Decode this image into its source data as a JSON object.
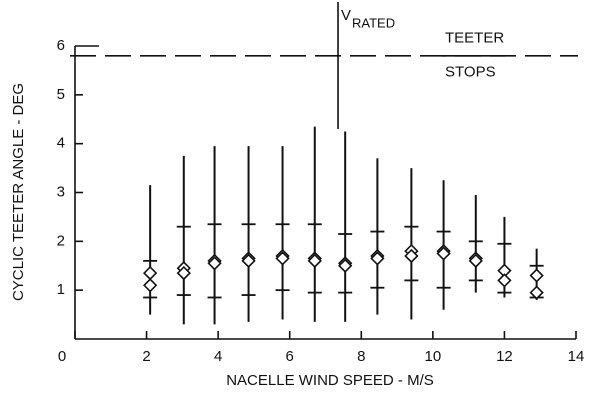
{
  "chart_data": {
    "type": "scatter",
    "x_label": "NACELLE WIND SPEED - M/S",
    "y_label": "CYCLIC TEETER ANGLE - DEG",
    "xlim": [
      0,
      14
    ],
    "ylim": [
      0,
      6
    ],
    "xticks": [
      0,
      2,
      4,
      6,
      8,
      10,
      12,
      14
    ],
    "yticks": [
      1,
      2,
      3,
      4,
      5,
      6
    ],
    "color": "#111111",
    "points": {
      "x": [
        2.1,
        3.04,
        3.9,
        4.85,
        5.8,
        6.7,
        7.55,
        8.45,
        9.4,
        10.3,
        11.2,
        12.0,
        12.9
      ],
      "max": [
        3.15,
        3.75,
        3.95,
        3.95,
        3.95,
        4.35,
        4.25,
        3.7,
        3.5,
        3.25,
        2.95,
        2.5,
        1.85
      ],
      "min": [
        0.5,
        0.3,
        0.3,
        0.35,
        0.4,
        0.35,
        0.35,
        0.5,
        0.4,
        0.6,
        0.95,
        0.85,
        0.8
      ],
      "upper": [
        1.6,
        2.3,
        2.35,
        2.35,
        2.35,
        2.35,
        2.15,
        2.2,
        2.3,
        2.2,
        2.0,
        1.95,
        1.5
      ],
      "lower": [
        0.85,
        0.9,
        0.85,
        0.9,
        1.0,
        0.95,
        0.95,
        1.05,
        1.2,
        1.05,
        1.2,
        0.95,
        0.85
      ],
      "value1": [
        1.35,
        1.45,
        1.6,
        1.65,
        1.7,
        1.65,
        1.55,
        1.7,
        1.8,
        1.8,
        1.65,
        1.4,
        1.3
      ],
      "value2": [
        1.1,
        1.35,
        1.55,
        1.6,
        1.65,
        1.6,
        1.5,
        1.65,
        1.7,
        1.75,
        1.6,
        1.2,
        0.95
      ]
    },
    "teeter_stops": {
      "y": 5.8,
      "label_line1": "TEETER",
      "label_line2": "STOPS"
    },
    "v_rated": {
      "x": 7.35,
      "label": "V",
      "subscript": "RATED"
    }
  }
}
